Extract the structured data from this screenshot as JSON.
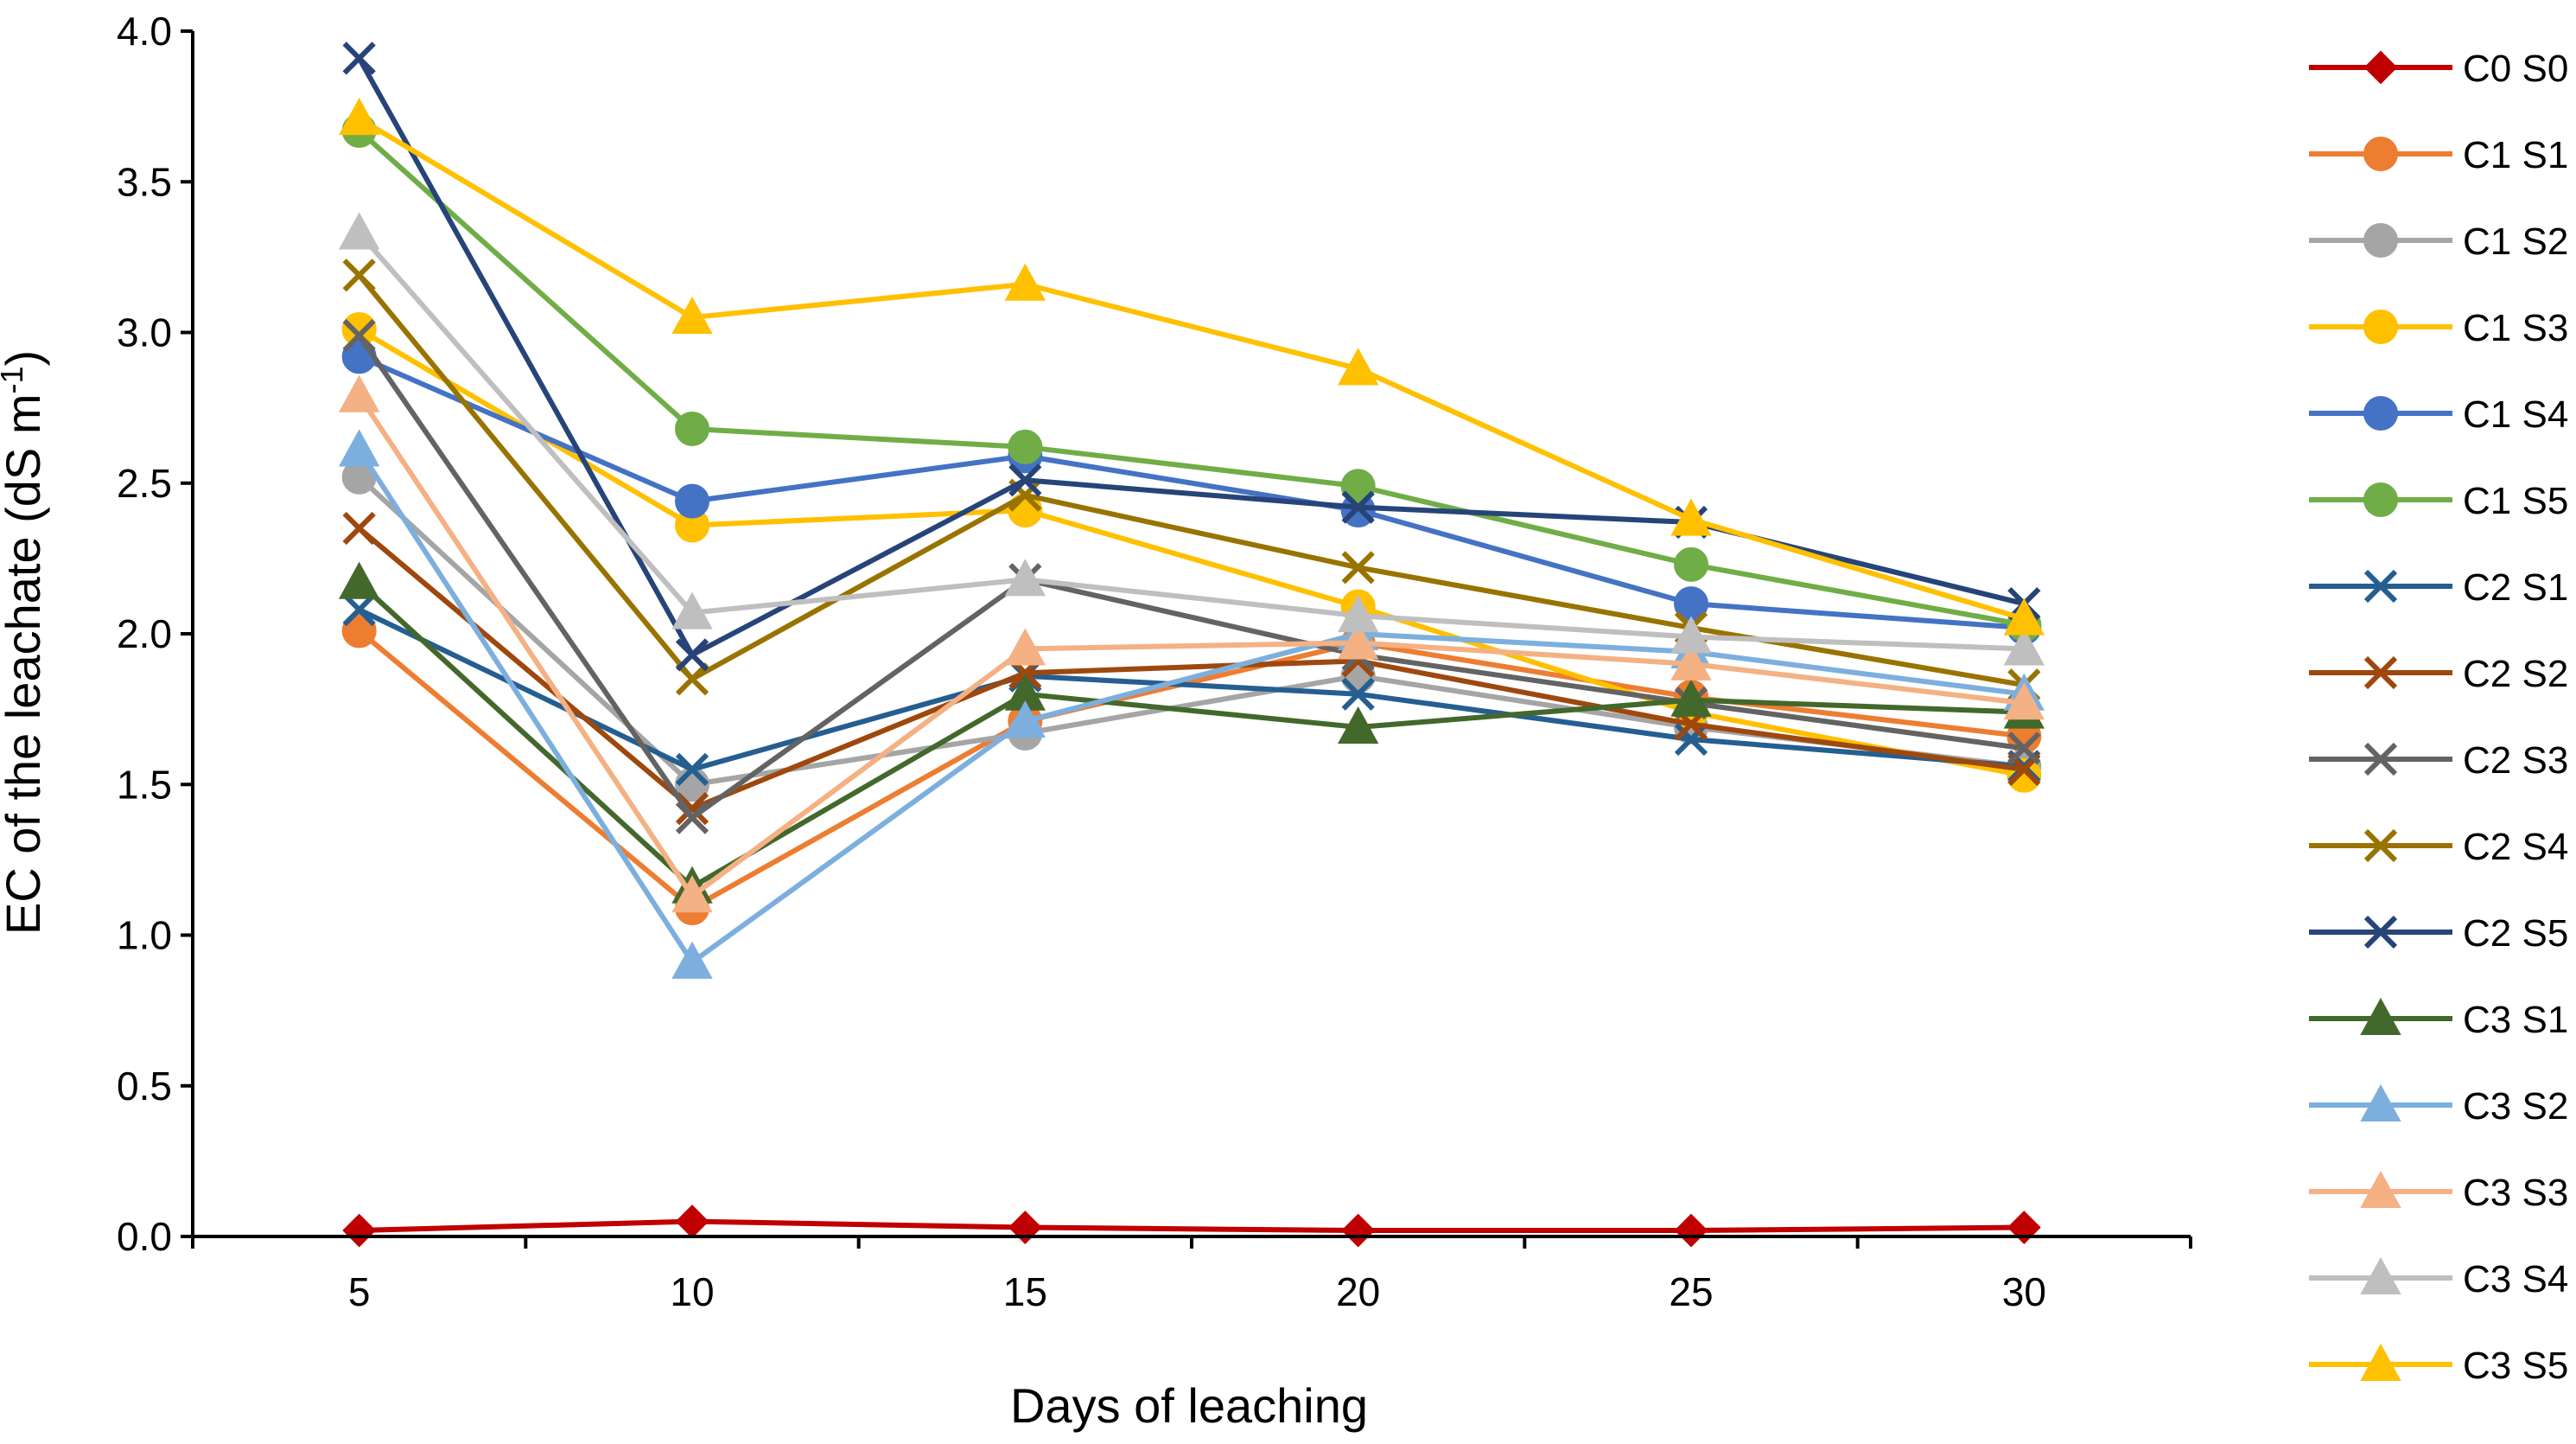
{
  "chart_data": {
    "type": "line",
    "title": "",
    "xlabel": "Days of leaching",
    "ylabel": "EC of the leachate (dS m",
    "ylabel_sup": "-1",
    "ylabel_close": ")",
    "x": [
      5,
      10,
      15,
      20,
      25,
      30
    ],
    "x_tick_labels": [
      "5",
      "10",
      "15",
      "20",
      "25",
      "30"
    ],
    "ylim": [
      0,
      4
    ],
    "y_tick_labels": [
      "0.0",
      "0.5",
      "1.0",
      "1.5",
      "2.0",
      "2.5",
      "3.0",
      "3.5",
      "4.0"
    ],
    "legend_position": "right",
    "grid": false,
    "series": [
      {
        "name": "C0 S0",
        "color": "#C00000",
        "marker": "diamond",
        "values": [
          0.02,
          0.05,
          0.03,
          0.02,
          0.02,
          0.03
        ]
      },
      {
        "name": "C1 S1",
        "color": "#ED7D31",
        "marker": "circle",
        "values": [
          2.01,
          1.09,
          1.71,
          1.97,
          1.79,
          1.66
        ]
      },
      {
        "name": "C1 S2",
        "color": "#A5A5A5",
        "marker": "circle",
        "values": [
          2.52,
          1.5,
          1.67,
          1.86,
          1.69,
          1.56
        ]
      },
      {
        "name": "C1 S3",
        "color": "#FFC000",
        "marker": "circle",
        "values": [
          3.01,
          2.36,
          2.41,
          2.09,
          1.74,
          1.53
        ]
      },
      {
        "name": "C1 S4",
        "color": "#4472C4",
        "marker": "circle",
        "values": [
          2.92,
          2.44,
          2.59,
          2.41,
          2.1,
          2.02
        ]
      },
      {
        "name": "C1 S5",
        "color": "#70AD47",
        "marker": "circle",
        "values": [
          3.67,
          2.68,
          2.62,
          2.49,
          2.23,
          2.03
        ]
      },
      {
        "name": "C2 S1",
        "color": "#255E91",
        "marker": "x",
        "values": [
          2.08,
          1.55,
          1.86,
          1.8,
          1.65,
          1.56
        ]
      },
      {
        "name": "C2 S2",
        "color": "#9E480E",
        "marker": "x",
        "values": [
          2.35,
          1.42,
          1.87,
          1.91,
          1.7,
          1.55
        ]
      },
      {
        "name": "C2 S3",
        "color": "#636363",
        "marker": "x",
        "values": [
          2.99,
          1.39,
          2.18,
          1.93,
          1.77,
          1.62
        ]
      },
      {
        "name": "C2 S4",
        "color": "#997300",
        "marker": "x",
        "values": [
          3.19,
          1.85,
          2.46,
          2.22,
          2.02,
          1.83
        ]
      },
      {
        "name": "C2 S5",
        "color": "#264478",
        "marker": "x",
        "values": [
          3.91,
          1.93,
          2.51,
          2.42,
          2.37,
          2.1
        ]
      },
      {
        "name": "C3 S1",
        "color": "#43682B",
        "marker": "triangle",
        "values": [
          2.17,
          1.16,
          1.8,
          1.69,
          1.78,
          1.74
        ]
      },
      {
        "name": "C3 S2",
        "color": "#7CAFDD",
        "marker": "triangle",
        "values": [
          2.61,
          0.91,
          1.71,
          2.0,
          1.94,
          1.8
        ]
      },
      {
        "name": "C3 S3",
        "color": "#F4B183",
        "marker": "triangle",
        "values": [
          2.79,
          1.13,
          1.95,
          1.97,
          1.9,
          1.77
        ]
      },
      {
        "name": "C3 S4",
        "color": "#BFBFBF",
        "marker": "triangle",
        "values": [
          3.33,
          2.07,
          2.18,
          2.06,
          1.99,
          1.95
        ]
      },
      {
        "name": "C3 S5",
        "color": "#FFC000",
        "marker": "triangle",
        "values": [
          3.71,
          3.05,
          3.16,
          2.88,
          2.38,
          2.05
        ]
      }
    ]
  }
}
